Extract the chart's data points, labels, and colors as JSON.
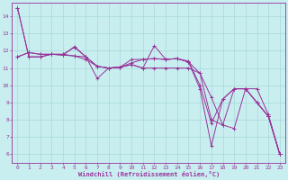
{
  "xlabel": "Windchill (Refroidissement éolien,°C)",
  "background_color": "#c8eef0",
  "grid_color": "#a8d8d8",
  "line_color": "#993399",
  "xlim": [
    -0.5,
    23.5
  ],
  "ylim": [
    5.5,
    14.8
  ],
  "yticks": [
    6,
    7,
    8,
    9,
    10,
    11,
    12,
    13,
    14
  ],
  "xticks": [
    0,
    1,
    2,
    3,
    4,
    5,
    6,
    7,
    8,
    9,
    10,
    11,
    12,
    13,
    14,
    15,
    16,
    17,
    18,
    19,
    20,
    21,
    22,
    23
  ],
  "series": [
    [
      14.5,
      11.65,
      11.65,
      11.8,
      11.8,
      12.2,
      11.65,
      11.1,
      11.0,
      11.05,
      11.2,
      11.0,
      12.3,
      11.5,
      11.55,
      11.4,
      10.0,
      7.8,
      9.2,
      9.8,
      9.8,
      9.0,
      8.2,
      6.0
    ],
    [
      11.65,
      11.9,
      11.8,
      11.8,
      11.75,
      12.25,
      11.65,
      10.4,
      11.0,
      11.05,
      11.3,
      11.5,
      11.55,
      11.5,
      11.55,
      11.35,
      10.7,
      9.3,
      7.7,
      7.5,
      9.8,
      9.8,
      8.3,
      6.0
    ],
    [
      11.65,
      11.9,
      11.8,
      11.8,
      11.75,
      11.7,
      11.5,
      11.1,
      11.0,
      11.05,
      11.5,
      11.5,
      11.55,
      11.5,
      11.55,
      11.35,
      9.8,
      6.5,
      9.2,
      9.8,
      9.8,
      9.0,
      8.2,
      6.0
    ],
    [
      14.5,
      11.65,
      11.65,
      11.8,
      11.8,
      11.7,
      11.65,
      11.1,
      11.0,
      11.05,
      11.2,
      11.0,
      11.0,
      11.0,
      11.0,
      11.0,
      10.7,
      8.0,
      7.7,
      9.8,
      9.8,
      9.0,
      8.2,
      6.0
    ]
  ]
}
